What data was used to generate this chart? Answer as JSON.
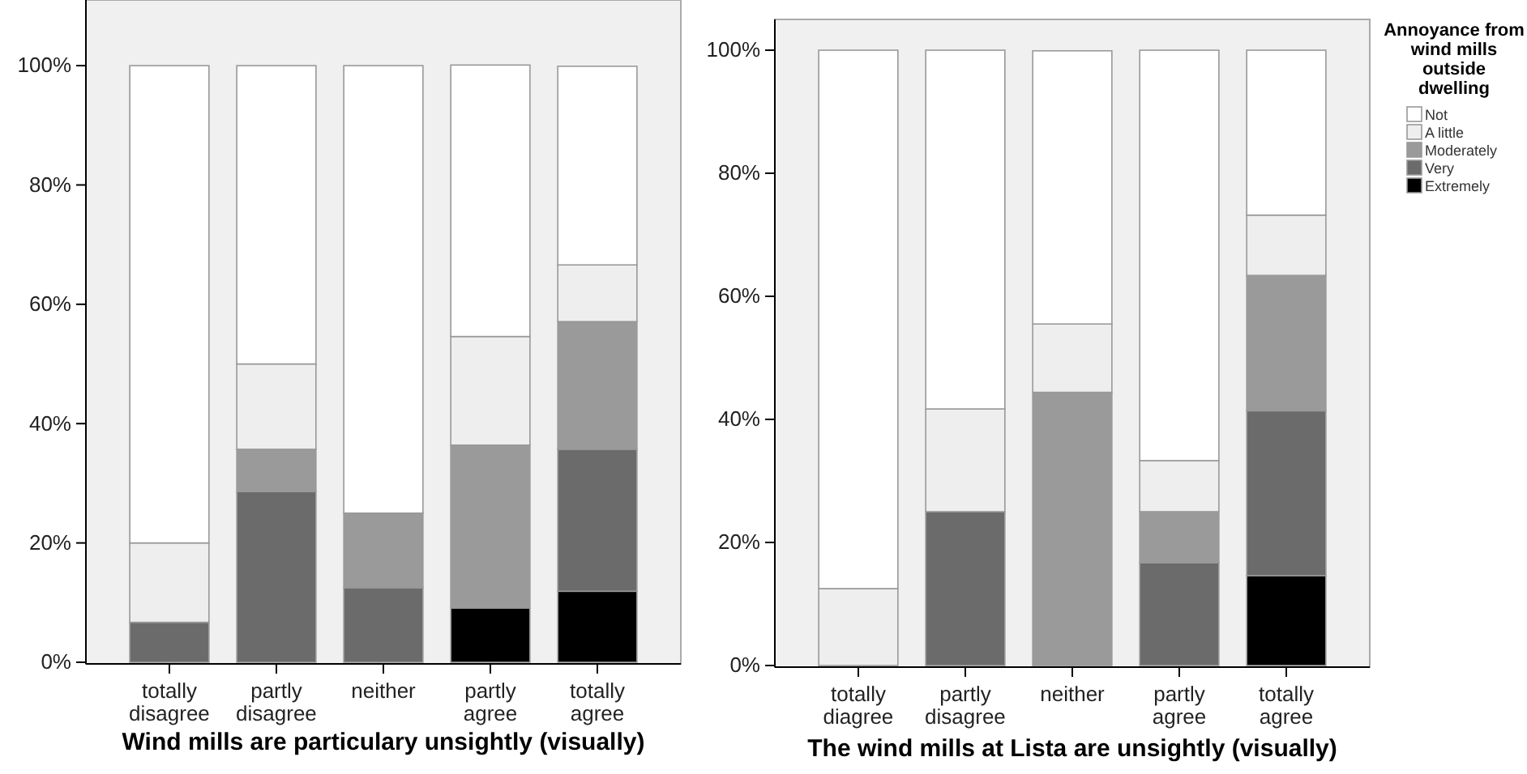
{
  "chart_data": [
    {
      "type": "bar",
      "stacked": true,
      "xlabel": "Wind mills are particulary unsightly (visually)",
      "categories": [
        "totally disagree",
        "partly disagree",
        "neither",
        "partly agree",
        "totally agree"
      ],
      "ylim": [
        0,
        111
      ],
      "yticks": [
        {
          "value": 0,
          "label": "0%"
        },
        {
          "value": 20,
          "label": "20%"
        },
        {
          "value": 40,
          "label": "40%"
        },
        {
          "value": 60,
          "label": "60%"
        },
        {
          "value": 80,
          "label": "80%"
        },
        {
          "value": 100,
          "label": "100%"
        }
      ],
      "series": [
        {
          "color": "#000000",
          "values": [
            0,
            0,
            0,
            9.1,
            11.9
          ]
        },
        {
          "color": "#6b6b6b",
          "values": [
            6.7,
            28.6,
            12.5,
            0,
            23.8
          ]
        },
        {
          "color": "#9a9a9a",
          "values": [
            0,
            7.1,
            12.5,
            27.3,
            21.4
          ]
        },
        {
          "color": "#eeeeee",
          "values": [
            13.3,
            14.3,
            0,
            18.2,
            9.5
          ]
        },
        {
          "color": "#ffffff",
          "values": [
            80,
            50,
            75,
            45.5,
            33.3
          ]
        }
      ]
    },
    {
      "type": "bar",
      "stacked": true,
      "xlabel": "The wind mills at Lista are unsightly (visually)",
      "legend": "right",
      "legend_title": "Annoyance from wind mills outside dwelling",
      "categories": [
        "totally diagree",
        "partly disagree",
        "neither",
        "partly agree",
        "totally agree"
      ],
      "ylim": [
        0,
        105
      ],
      "yticks": [
        {
          "value": 0,
          "label": "0%"
        },
        {
          "value": 20,
          "label": "20%"
        },
        {
          "value": 40,
          "label": "40%"
        },
        {
          "value": 60,
          "label": "60%"
        },
        {
          "value": 80,
          "label": "80%"
        },
        {
          "value": 100,
          "label": "100%"
        }
      ],
      "series": [
        {
          "name": "Extremely",
          "color": "#000000",
          "values": [
            0,
            0,
            0,
            0,
            14.6
          ]
        },
        {
          "name": "Very",
          "color": "#6b6b6b",
          "values": [
            0,
            25,
            0,
            16.7,
            26.8
          ]
        },
        {
          "name": "Moderately",
          "color": "#9a9a9a",
          "values": [
            0,
            0,
            44.4,
            8.3,
            22
          ]
        },
        {
          "name": "A little",
          "color": "#eeeeee",
          "values": [
            12.5,
            16.7,
            11.1,
            8.3,
            9.8
          ]
        },
        {
          "name": "Not",
          "color": "#ffffff",
          "values": [
            87.5,
            58.3,
            44.4,
            66.7,
            26.8
          ]
        }
      ]
    }
  ]
}
